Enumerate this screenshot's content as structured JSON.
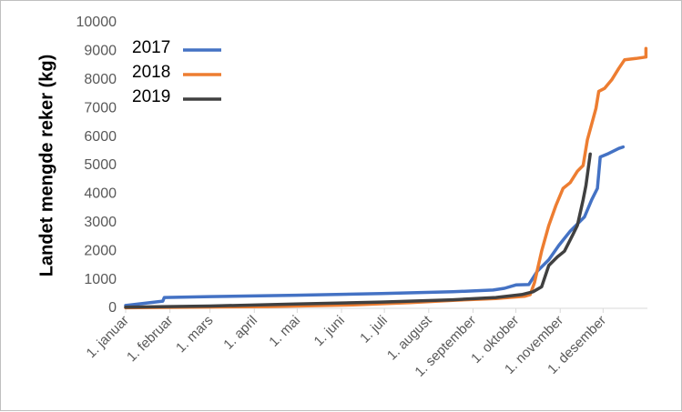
{
  "chart_data": {
    "type": "line",
    "ylabel": "Landet mengde reker  (kg)",
    "xlabel": "",
    "title": "",
    "ylim": [
      0,
      10000
    ],
    "yticks": [
      0,
      1000,
      2000,
      3000,
      4000,
      5000,
      6000,
      7000,
      8000,
      9000,
      10000
    ],
    "xlim": [
      1,
      366
    ],
    "xticks": [
      {
        "label": "1. januar",
        "day": 1
      },
      {
        "label": "1. februar",
        "day": 32
      },
      {
        "label": "1. mars",
        "day": 60
      },
      {
        "label": "1. april",
        "day": 91
      },
      {
        "label": "1. mai",
        "day": 121
      },
      {
        "label": "1. juni",
        "day": 152
      },
      {
        "label": "1. juli",
        "day": 182
      },
      {
        "label": "1. august",
        "day": 213
      },
      {
        "label": "1. september",
        "day": 244
      },
      {
        "label": "1. oktober",
        "day": 274
      },
      {
        "label": "1. november",
        "day": 305
      },
      {
        "label": "1. desember",
        "day": 335
      }
    ],
    "grid": false,
    "legend_position": "top-left",
    "series": [
      {
        "name": "2017",
        "color": "#4472C4",
        "points": [
          [
            1,
            100
          ],
          [
            27,
            250
          ],
          [
            28,
            380
          ],
          [
            60,
            410
          ],
          [
            120,
            460
          ],
          [
            180,
            520
          ],
          [
            230,
            580
          ],
          [
            258,
            640
          ],
          [
            266,
            700
          ],
          [
            274,
            820
          ],
          [
            283,
            830
          ],
          [
            289,
            1300
          ],
          [
            297,
            1700
          ],
          [
            304,
            2200
          ],
          [
            312,
            2700
          ],
          [
            318,
            3000
          ],
          [
            322,
            3200
          ],
          [
            327,
            3800
          ],
          [
            331,
            4200
          ],
          [
            333,
            5300
          ],
          [
            338,
            5400
          ],
          [
            346,
            5600
          ],
          [
            349,
            5650
          ]
        ]
      },
      {
        "name": "2018",
        "color": "#ED7D31",
        "points": [
          [
            1,
            20
          ],
          [
            100,
            60
          ],
          [
            160,
            120
          ],
          [
            200,
            200
          ],
          [
            230,
            280
          ],
          [
            260,
            340
          ],
          [
            280,
            420
          ],
          [
            284,
            480
          ],
          [
            287,
            900
          ],
          [
            292,
            2000
          ],
          [
            297,
            2900
          ],
          [
            302,
            3600
          ],
          [
            307,
            4200
          ],
          [
            312,
            4400
          ],
          [
            317,
            4800
          ],
          [
            321,
            5000
          ],
          [
            324,
            5900
          ],
          [
            330,
            7000
          ],
          [
            332,
            7600
          ],
          [
            336,
            7700
          ],
          [
            341,
            8000
          ],
          [
            346,
            8400
          ],
          [
            350,
            8700
          ],
          [
            358,
            8750
          ],
          [
            365,
            8800
          ],
          [
            365,
            9100
          ]
        ]
      },
      {
        "name": "2019",
        "color": "#404040",
        "points": [
          [
            1,
            40
          ],
          [
            60,
            80
          ],
          [
            120,
            150
          ],
          [
            180,
            220
          ],
          [
            230,
            300
          ],
          [
            260,
            380
          ],
          [
            278,
            480
          ],
          [
            286,
            580
          ],
          [
            292,
            750
          ],
          [
            297,
            1500
          ],
          [
            303,
            1800
          ],
          [
            308,
            2000
          ],
          [
            314,
            2600
          ],
          [
            317,
            2900
          ],
          [
            321,
            3800
          ],
          [
            323,
            4300
          ],
          [
            326,
            5400
          ]
        ]
      }
    ]
  }
}
